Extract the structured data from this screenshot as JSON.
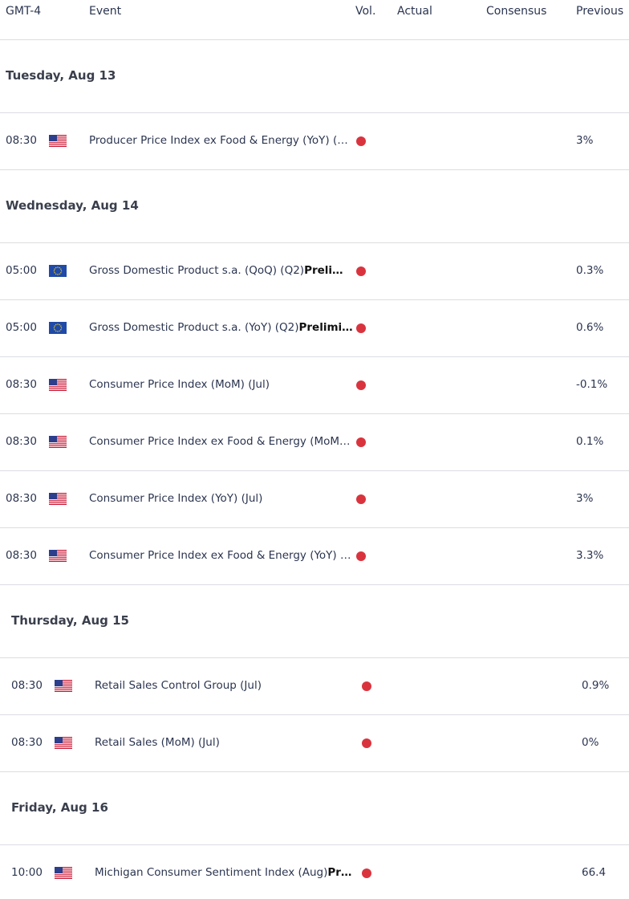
{
  "header": {
    "columns": [
      "GMT-4",
      "Event",
      "Vol.",
      "Actual",
      "Consensus",
      "Previous"
    ]
  },
  "days": [
    {
      "label": "Tuesday, Aug 13",
      "events": [
        {
          "time": "08:30",
          "flag": "us",
          "event": "Producer Price Index ex Food & Energy (YoY) (…",
          "previous": "3%"
        }
      ]
    },
    {
      "label": "Wednesday, Aug 14",
      "events": [
        {
          "time": "05:00",
          "flag": "eu",
          "event": "Gross Domestic Product s.a. (QoQ) (Q2)",
          "event_bold": "Preli…",
          "previous": "0.3%"
        },
        {
          "time": "05:00",
          "flag": "eu",
          "event": "Gross Domestic Product s.a. (YoY) (Q2)",
          "event_bold": "Prelimi…",
          "previous": "0.6%"
        },
        {
          "time": "08:30",
          "flag": "us",
          "event": "Consumer Price Index (MoM) (Jul)",
          "previous": "-0.1%"
        },
        {
          "time": "08:30",
          "flag": "us",
          "event": "Consumer Price Index ex Food & Energy (MoM…",
          "previous": "0.1%"
        },
        {
          "time": "08:30",
          "flag": "us",
          "event": "Consumer Price Index (YoY) (Jul)",
          "previous": "3%"
        },
        {
          "time": "08:30",
          "flag": "us",
          "event": "Consumer Price Index ex Food & Energy (YoY) …",
          "previous": "3.3%"
        }
      ]
    },
    {
      "label": "Thursday, Aug 15",
      "events": [
        {
          "time": "08:30",
          "flag": "us",
          "event": "Retail Sales Control Group (Jul)",
          "previous": "0.9%"
        },
        {
          "time": "08:30",
          "flag": "us",
          "event": "Retail Sales (MoM) (Jul)",
          "previous": "0%"
        }
      ]
    },
    {
      "label": "Friday, Aug 16",
      "events": [
        {
          "time": "10:00",
          "flag": "us",
          "event": "Michigan Consumer Sentiment Index (Aug)",
          "event_bold": "Pr…",
          "previous": "66.4"
        }
      ]
    }
  ]
}
